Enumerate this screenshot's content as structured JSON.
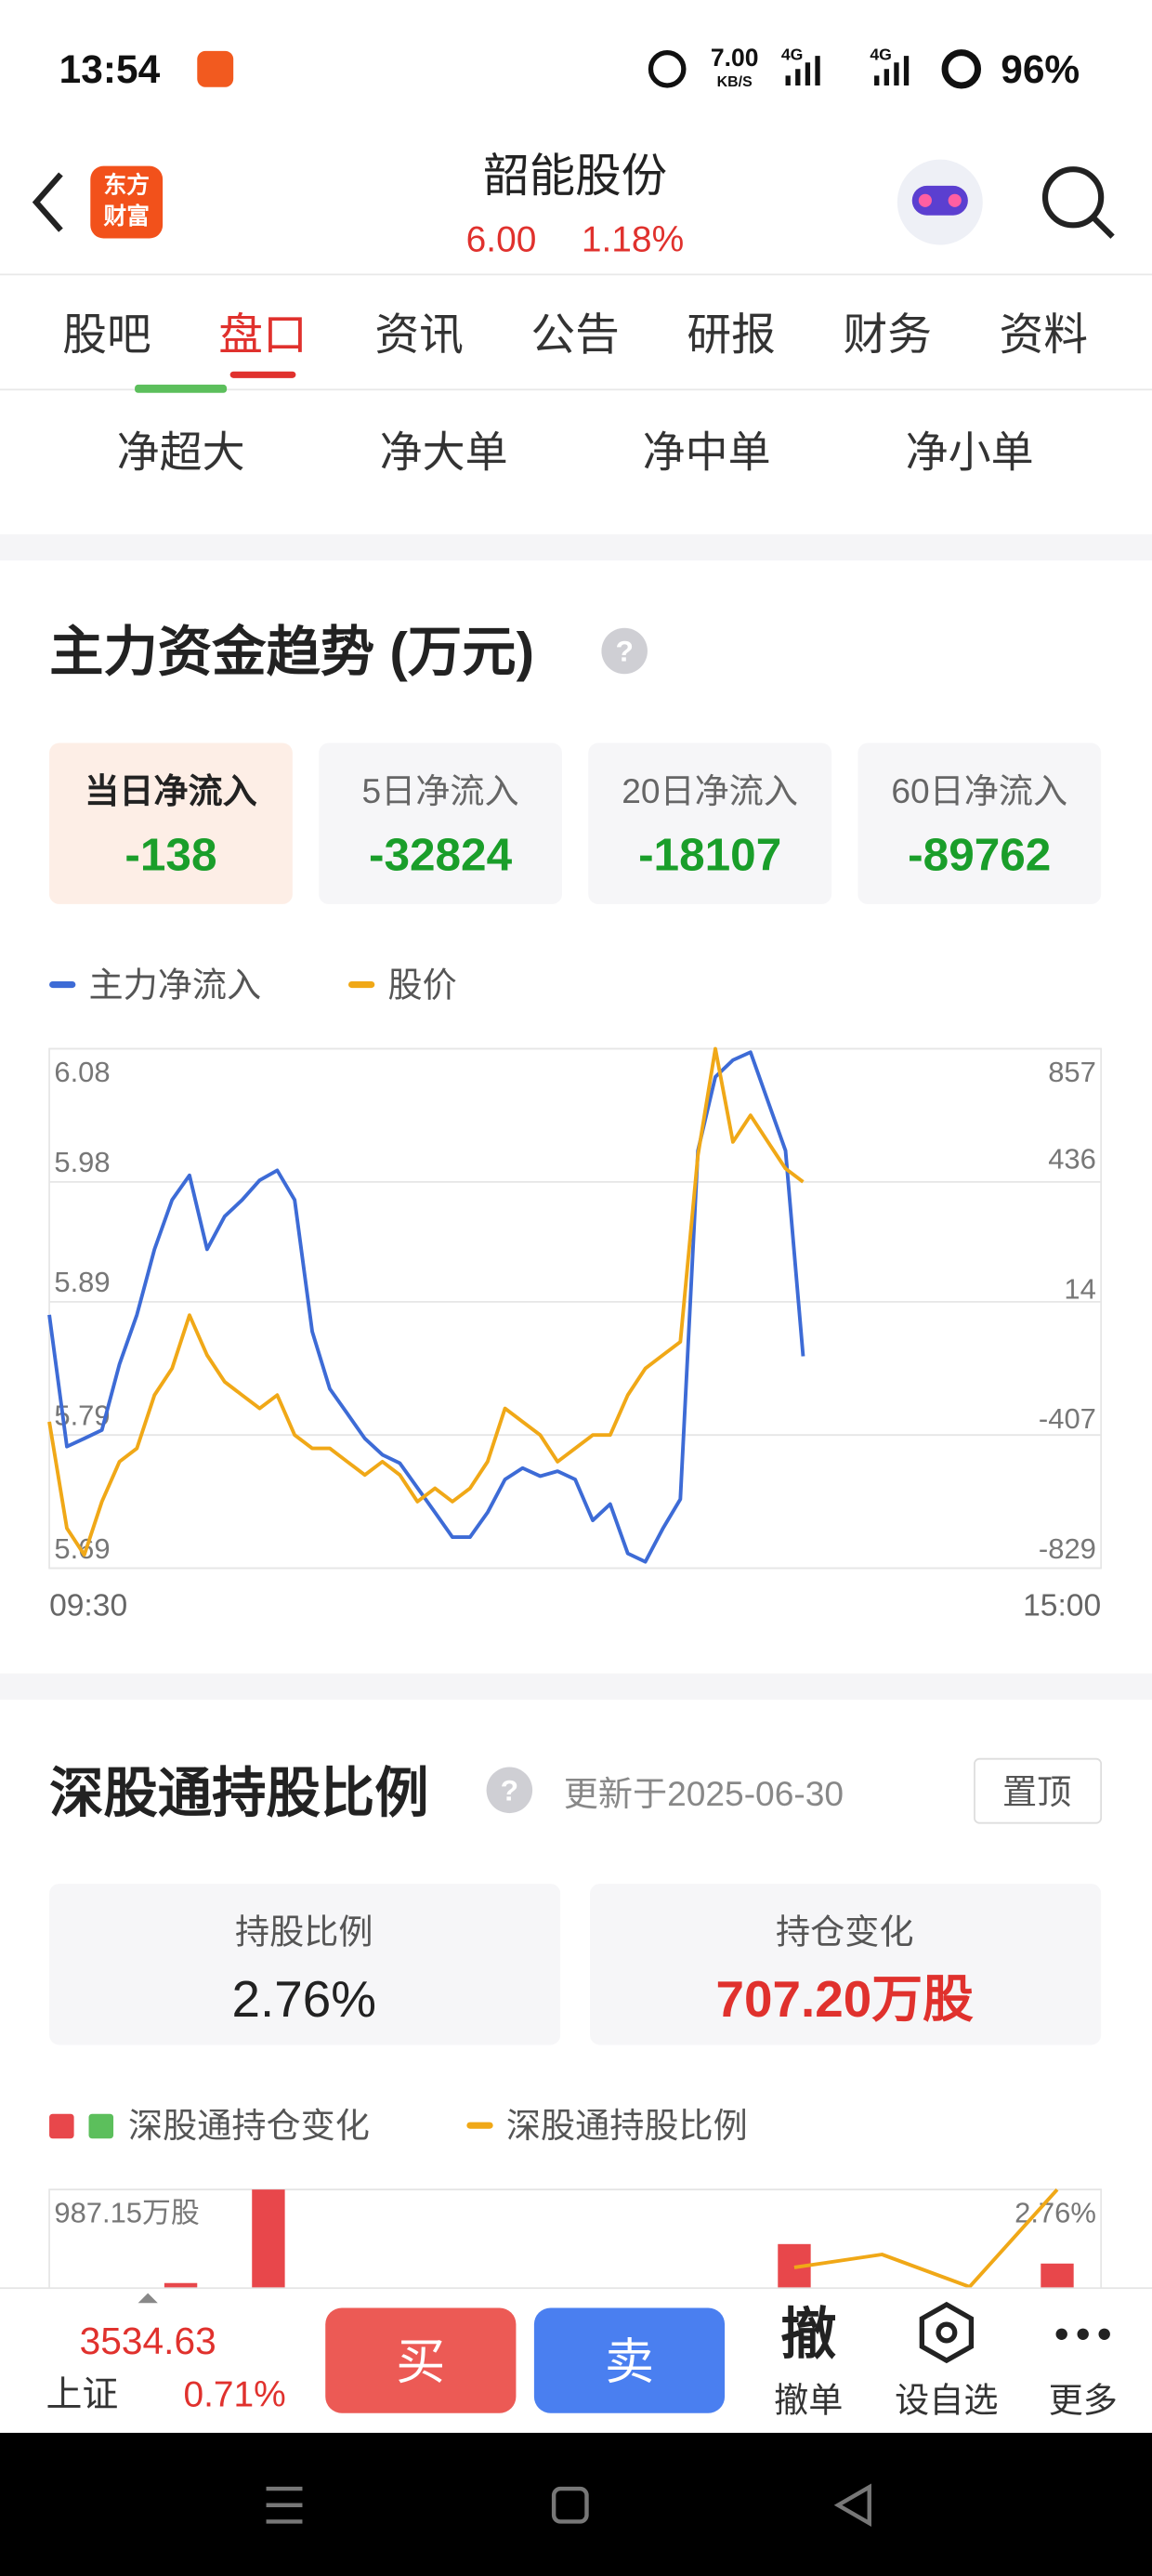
{
  "status_bar": {
    "time": "13:54",
    "speed": "7.00",
    "speed_unit": "KB/S",
    "net1": "4G",
    "net2": "4G",
    "battery": "96%"
  },
  "header": {
    "logo": [
      "东方",
      "财富"
    ],
    "title": "韶能股份",
    "price": "6.00",
    "change": "1.18%"
  },
  "tabs": [
    "股吧",
    "盘口",
    "资讯",
    "公告",
    "研报",
    "财务",
    "资料"
  ],
  "active_tab": 1,
  "sub_tabs": [
    "净超大",
    "净大单",
    "净中单",
    "净小单"
  ],
  "flow_section": {
    "title": "主力资金趋势 (万元)",
    "cards": [
      {
        "label": "当日净流入",
        "value": -138
      },
      {
        "label": "5日净流入",
        "value": -32824
      },
      {
        "label": "20日净流入",
        "value": -18107
      },
      {
        "label": "60日净流入",
        "value": -89762
      }
    ],
    "chart_data": {
      "type": "line",
      "xtick_labels": [
        "09:30",
        "15:00"
      ],
      "ylim": [
        5.69,
        6.08
      ],
      "yticks": [
        5.69,
        5.79,
        5.89,
        5.98,
        6.08
      ],
      "y2lim": [
        -829,
        857
      ],
      "y2ticks": [
        -829,
        -407,
        14,
        436,
        857
      ],
      "grid": true,
      "series": [
        {
          "name": "主力净流入",
          "color": "#3d6bd6",
          "axis": "y2",
          "values": [
            -7,
            -434,
            -408,
            -381,
            -167,
            -7,
            206,
            366,
            446,
            206,
            313,
            366,
            430,
            462,
            366,
            -61,
            -247,
            -327,
            -408,
            -461,
            -488,
            -568,
            -648,
            -728,
            -728,
            -648,
            -541,
            -504,
            -530,
            -514,
            -541,
            -674,
            -621,
            -781,
            -808,
            -701,
            -605,
            526,
            766,
            820,
            846,
            686,
            526,
            -141,
            null,
            null,
            null,
            null,
            null,
            null,
            null,
            null,
            null,
            null,
            null,
            null,
            null,
            null,
            null,
            null,
            null
          ]
        },
        {
          "name": "股价",
          "color": "#f0a817",
          "values": [
            5.8,
            5.72,
            5.7,
            5.74,
            5.77,
            5.78,
            5.82,
            5.84,
            5.88,
            5.85,
            5.83,
            5.82,
            5.81,
            5.82,
            5.79,
            5.78,
            5.78,
            5.77,
            5.76,
            5.77,
            5.76,
            5.74,
            5.75,
            5.74,
            5.75,
            5.77,
            5.81,
            5.8,
            5.79,
            5.77,
            5.78,
            5.79,
            5.79,
            5.82,
            5.84,
            5.85,
            5.86,
            6.0,
            6.08,
            6.01,
            6.03,
            6.01,
            5.99,
            5.98,
            null,
            null,
            null,
            null,
            null,
            null,
            null,
            null,
            null,
            null,
            null,
            null,
            null,
            null,
            null,
            null,
            null
          ]
        }
      ]
    }
  },
  "holding_section": {
    "title": "深股通持股比例",
    "updated": "更新于2025-06-30",
    "pin": "置顶",
    "cards": [
      {
        "label": "持股比例",
        "value": "2.76%"
      },
      {
        "label": "持仓变化",
        "value": "707.20万股"
      }
    ],
    "chart_data": {
      "type": "bar",
      "ylim": [
        0,
        987.15
      ],
      "yticks": [
        {
          "value": 987.15,
          "label": "987.15万股"
        }
      ],
      "y2lim": [
        2.0,
        2.76
      ],
      "y2ticks": [
        {
          "value": 2.76,
          "label": "2.76%"
        }
      ],
      "grid": true,
      "series": [
        {
          "name": "深股通持仓变化",
          "colors": [
            "#e8474b",
            "#5cbf5c"
          ],
          "values": [
            null,
            800,
            987.15,
            null,
            null,
            null,
            null,
            null,
            878,
            null,
            null,
            839
          ]
        },
        {
          "name": "深股通持股比例",
          "color": "#f0a817",
          "type": "line",
          "axis": "y2",
          "values": [
            null,
            null,
            null,
            null,
            null,
            null,
            null,
            null,
            2.64,
            2.66,
            2.61,
            2.76
          ]
        }
      ]
    }
  },
  "bottom_bar": {
    "index_value": "3534.63",
    "index_name": "上证",
    "index_change": "0.71%",
    "buy": "买",
    "sell": "卖",
    "cancel_icon": "撤",
    "cancel": "撤单",
    "watchlist": "设自选",
    "more": "更多"
  }
}
